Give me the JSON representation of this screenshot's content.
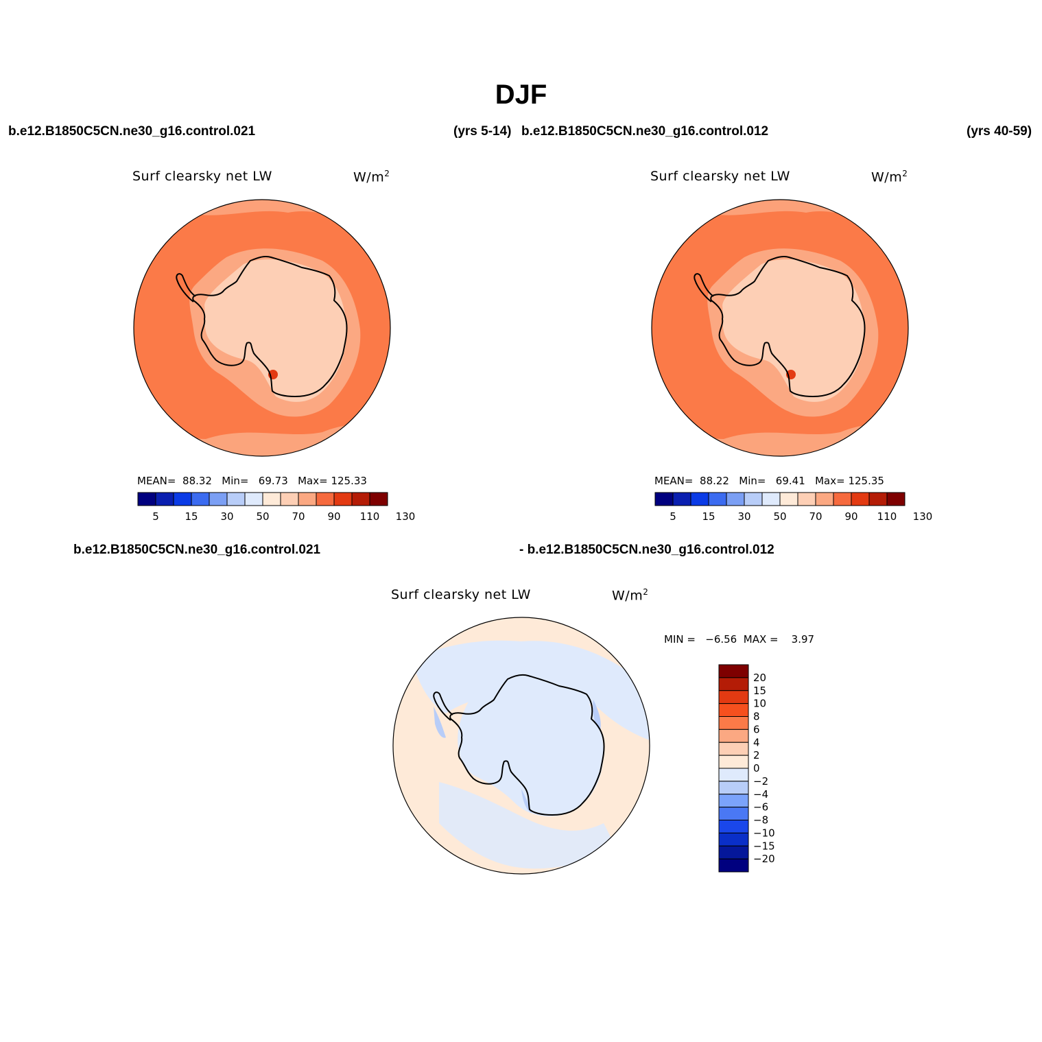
{
  "title": "DJF",
  "header": {
    "case_a": "b.e12.B1850C5CN.ne30_g16.control.021",
    "years_a": "(yrs 5-14)",
    "case_b": "b.e12.B1850C5CN.ne30_g16.control.012",
    "years_b": "(yrs 40-59)"
  },
  "diff_header": {
    "left": "b.e12.B1850C5CN.ne30_g16.control.021",
    "right": "- b.e12.B1850C5CN.ne30_g16.control.012"
  },
  "panels": [
    {
      "variable": "Surf clearsky net LW",
      "units": "W/m",
      "units_sup": "2",
      "mean_label": "MEAN=",
      "mean": "88.32",
      "min_label": "Min=",
      "min": "69.73",
      "max_label": "Max=",
      "max": "125.33"
    },
    {
      "variable": "Surf clearsky net LW",
      "units": "W/m",
      "units_sup": "2",
      "mean_label": "MEAN=",
      "mean": "88.22",
      "min_label": "Min=",
      "min": "69.41",
      "max_label": "Max=",
      "max": "125.35"
    }
  ],
  "diff_panel": {
    "variable": "Surf clearsky net LW",
    "units": "W/m",
    "units_sup": "2",
    "min_label": "MIN =",
    "min": "−6.56",
    "max_label": "MAX =",
    "max": "3.97"
  },
  "colorbar_abs": {
    "colors": [
      "#00007f",
      "#0a1fb0",
      "#0b3be6",
      "#3b6bf0",
      "#7b9ff4",
      "#b8cdf8",
      "#dfeafc",
      "#feead8",
      "#fdcfb5",
      "#fba882",
      "#f66a3e",
      "#e33a12",
      "#b41c06",
      "#7e0000"
    ],
    "tick_labels": [
      "5",
      "15",
      "30",
      "50",
      "70",
      "90",
      "110",
      "130"
    ]
  },
  "colorbar_diff": {
    "colors": [
      "#7e0000",
      "#b41c06",
      "#e33a12",
      "#f6501e",
      "#fb7a48",
      "#fba882",
      "#fdcfb5",
      "#feead8",
      "#dfeafc",
      "#b8cdf8",
      "#7ba3fb",
      "#4a78f4",
      "#1a47ea",
      "#0a2fc8",
      "#05179a",
      "#00007f"
    ],
    "tick_labels": [
      "20",
      "15",
      "10",
      "8",
      "6",
      "4",
      "2",
      "0",
      "−2",
      "−4",
      "−6",
      "−8",
      "−10",
      "−15",
      "−20"
    ]
  },
  "map_colors": {
    "ocean_abs": "#fb7a48",
    "land_abs": "#fdcfb5",
    "coast_abs": "#fba882",
    "diff_pos": "#feead8",
    "diff_neg": "#dfeafc",
    "diff_neg2": "#b8cdf8"
  }
}
